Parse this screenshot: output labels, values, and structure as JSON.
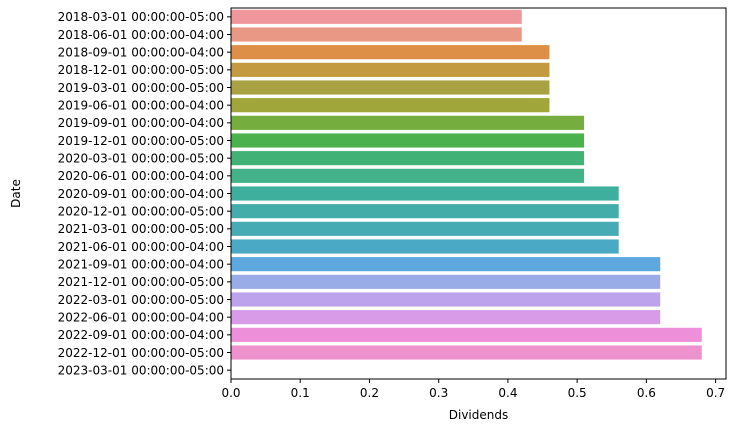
{
  "chart_data": {
    "type": "bar",
    "orientation": "horizontal",
    "title": "",
    "xlabel": "Dividends",
    "ylabel": "Date",
    "xlim": [
      0,
      0.715
    ],
    "xticks": [
      "0.0",
      "0.1",
      "0.2",
      "0.3",
      "0.4",
      "0.5",
      "0.6",
      "0.7"
    ],
    "grid": false,
    "legend": "none",
    "categories": [
      "2018-03-01 00:00:00-05:00",
      "2018-06-01 00:00:00-04:00",
      "2018-09-01 00:00:00-04:00",
      "2018-12-01 00:00:00-05:00",
      "2019-03-01 00:00:00-05:00",
      "2019-06-01 00:00:00-04:00",
      "2019-09-01 00:00:00-04:00",
      "2019-12-01 00:00:00-05:00",
      "2020-03-01 00:00:00-05:00",
      "2020-06-01 00:00:00-04:00",
      "2020-09-01 00:00:00-04:00",
      "2020-12-01 00:00:00-05:00",
      "2021-03-01 00:00:00-05:00",
      "2021-06-01 00:00:00-04:00",
      "2021-09-01 00:00:00-04:00",
      "2021-12-01 00:00:00-05:00",
      "2022-03-01 00:00:00-05:00",
      "2022-06-01 00:00:00-04:00",
      "2022-09-01 00:00:00-04:00",
      "2022-12-01 00:00:00-05:00",
      "2023-03-01 00:00:00-05:00"
    ],
    "values": [
      0.42,
      0.42,
      0.46,
      0.46,
      0.46,
      0.46,
      0.51,
      0.51,
      0.51,
      0.51,
      0.56,
      0.56,
      0.56,
      0.56,
      0.62,
      0.62,
      0.62,
      0.62,
      0.68,
      0.68,
      0
    ],
    "colors": [
      "#f0969d",
      "#e99886",
      "#dd8f48",
      "#c39a3f",
      "#a8a244",
      "#a0a63a",
      "#75ad3e",
      "#4bb14d",
      "#41b176",
      "#43b28b",
      "#3eaf9d",
      "#43ada9",
      "#46abb3",
      "#4aa9c4",
      "#5da8df",
      "#9aace8",
      "#bda3ec",
      "#d79be8",
      "#ee8fd9",
      "#ee92cd",
      "#f19ab8"
    ]
  }
}
